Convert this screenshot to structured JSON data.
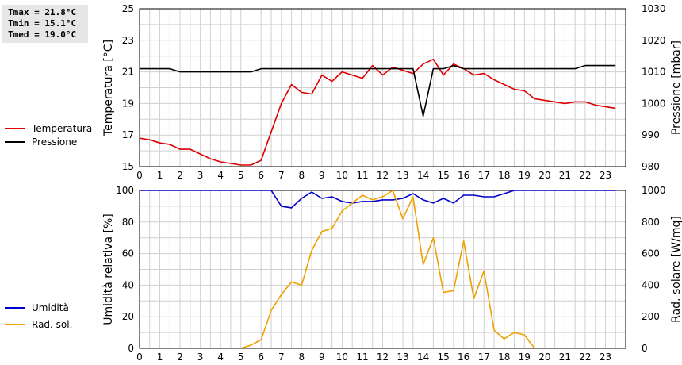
{
  "stats": {
    "tmax": "Tmax = 21.8°C",
    "tmin": "Tmin = 15.1°C",
    "tmed": "Tmed = 19.0°C"
  },
  "legend": {
    "temperatura": {
      "label": "Temperatura",
      "color": "#dd0000"
    },
    "pressione": {
      "label": "Pressione",
      "color": "#000000"
    },
    "umidita": {
      "label": "Umidità",
      "color": "#0000cc"
    },
    "radsol": {
      "label": "Rad. sol.",
      "color": "#f0a000"
    }
  },
  "chart_data": [
    {
      "type": "line",
      "xlim": [
        0,
        24
      ],
      "xticks": [
        "0",
        "1",
        "2",
        "3",
        "4",
        "5",
        "6",
        "7",
        "8",
        "9",
        "10",
        "11",
        "12",
        "13",
        "14",
        "15",
        "16",
        "17",
        "18",
        "19",
        "20",
        "21",
        "22",
        "23"
      ],
      "ylabel": "Temperatura [°C]",
      "ylim": [
        15,
        25
      ],
      "yticks": [
        "15",
        "17",
        "19",
        "21",
        "23",
        "25"
      ],
      "y2label": "Pressione [mbar]",
      "y2lim": [
        980,
        1030
      ],
      "y2ticks": [
        "980",
        "990",
        "1000",
        "1010",
        "1020",
        "1030"
      ],
      "grid": true,
      "series": [
        {
          "name": "Temperatura",
          "axis": "left",
          "color": "#dd0000",
          "x": [
            0,
            0.5,
            1,
            1.5,
            2,
            2.5,
            3,
            3.5,
            4,
            4.5,
            5,
            5.5,
            6,
            6.5,
            7,
            7.5,
            8,
            8.5,
            9,
            9.5,
            10,
            10.5,
            11,
            11.5,
            12,
            12.5,
            13,
            13.5,
            14,
            14.5,
            15,
            15.5,
            16,
            16.5,
            17,
            17.5,
            18,
            18.5,
            19,
            19.5,
            20,
            20.5,
            21,
            21.5,
            22,
            22.5,
            23,
            23.5
          ],
          "y": [
            16.8,
            16.7,
            16.5,
            16.4,
            16.1,
            16.1,
            15.8,
            15.5,
            15.3,
            15.2,
            15.1,
            15.1,
            15.4,
            17.2,
            19.0,
            20.2,
            19.7,
            19.6,
            20.8,
            20.4,
            21.0,
            20.8,
            20.6,
            21.4,
            20.8,
            21.3,
            21.1,
            20.9,
            21.5,
            21.8,
            20.8,
            21.5,
            21.2,
            20.8,
            20.9,
            20.5,
            20.2,
            19.9,
            19.8,
            19.3,
            19.2,
            19.1,
            19.0,
            19.1,
            19.1,
            18.9,
            18.8,
            18.7
          ]
        },
        {
          "name": "Pressione",
          "axis": "right",
          "color": "#000000",
          "x": [
            0,
            0.5,
            1,
            1.5,
            2,
            2.5,
            3,
            3.5,
            4,
            4.5,
            5,
            5.5,
            6,
            6.5,
            7,
            7.5,
            8,
            8.5,
            9,
            9.5,
            10,
            10.5,
            11,
            11.5,
            12,
            12.5,
            13,
            13.5,
            14,
            14.5,
            15,
            15.5,
            16,
            16.5,
            17,
            17.5,
            18,
            18.5,
            19,
            19.5,
            20,
            20.5,
            21,
            21.5,
            22,
            22.5,
            23,
            23.5
          ],
          "y": [
            1011,
            1011,
            1011,
            1011,
            1010,
            1010,
            1010,
            1010,
            1010,
            1010,
            1010,
            1010,
            1011,
            1011,
            1011,
            1011,
            1011,
            1011,
            1011,
            1011,
            1011,
            1011,
            1011,
            1011,
            1011,
            1011,
            1011,
            1011,
            996,
            1011,
            1011,
            1012,
            1011,
            1011,
            1011,
            1011,
            1011,
            1011,
            1011,
            1011,
            1011,
            1011,
            1011,
            1011,
            1012,
            1012,
            1012,
            1012
          ]
        }
      ]
    },
    {
      "type": "line",
      "xlim": [
        0,
        24
      ],
      "xticks": [
        "0",
        "1",
        "2",
        "3",
        "4",
        "5",
        "6",
        "7",
        "8",
        "9",
        "10",
        "11",
        "12",
        "13",
        "14",
        "15",
        "16",
        "17",
        "18",
        "19",
        "20",
        "21",
        "22",
        "23"
      ],
      "ylabel": "Umidità relativa [%]",
      "ylim": [
        0,
        100
      ],
      "yticks": [
        "0",
        "20",
        "40",
        "60",
        "80",
        "100"
      ],
      "y2label": "Rad. solare [W/mq]",
      "y2lim": [
        0,
        1000
      ],
      "y2ticks": [
        "0",
        "200",
        "400",
        "600",
        "800",
        "1000"
      ],
      "grid": true,
      "series": [
        {
          "name": "Umidità",
          "axis": "left",
          "color": "#0000cc",
          "x": [
            0,
            6.5,
            7,
            7.5,
            8,
            8.5,
            9,
            9.5,
            10,
            10.5,
            11,
            11.5,
            12,
            12.5,
            13,
            13.5,
            14,
            14.5,
            15,
            15.5,
            16,
            16.5,
            17,
            17.5,
            18,
            18.5,
            19,
            20,
            21,
            22,
            23,
            23.5
          ],
          "y": [
            100,
            100,
            90,
            89,
            95,
            99,
            95,
            96,
            93,
            92,
            93,
            93,
            94,
            94,
            95,
            98,
            94,
            92,
            95,
            92,
            97,
            97,
            96,
            96,
            98,
            100,
            100,
            100,
            100,
            100,
            100,
            100
          ]
        },
        {
          "name": "Rad. sol.",
          "axis": "right",
          "color": "#f0a000",
          "x": [
            0,
            0.5,
            1,
            1.5,
            2,
            2.5,
            3,
            3.5,
            4,
            4.5,
            5,
            5.5,
            6,
            6.5,
            7,
            7.5,
            8,
            8.5,
            9,
            9.5,
            10,
            10.5,
            11,
            11.5,
            12,
            12.5,
            13,
            13.5,
            14,
            14.5,
            15,
            15.5,
            16,
            16.5,
            17,
            17.5,
            18,
            18.5,
            19,
            19.5,
            20,
            20.5,
            21,
            21.5,
            22,
            22.5,
            23,
            23.5
          ],
          "y": [
            0,
            0,
            0,
            0,
            0,
            0,
            0,
            0,
            0,
            0,
            0,
            20,
            55,
            240,
            340,
            420,
            400,
            620,
            740,
            760,
            870,
            920,
            970,
            940,
            960,
            1000,
            820,
            960,
            530,
            700,
            355,
            365,
            680,
            315,
            490,
            115,
            60,
            100,
            85,
            0,
            0,
            0,
            0,
            0,
            0,
            0,
            0,
            0
          ]
        }
      ]
    }
  ]
}
